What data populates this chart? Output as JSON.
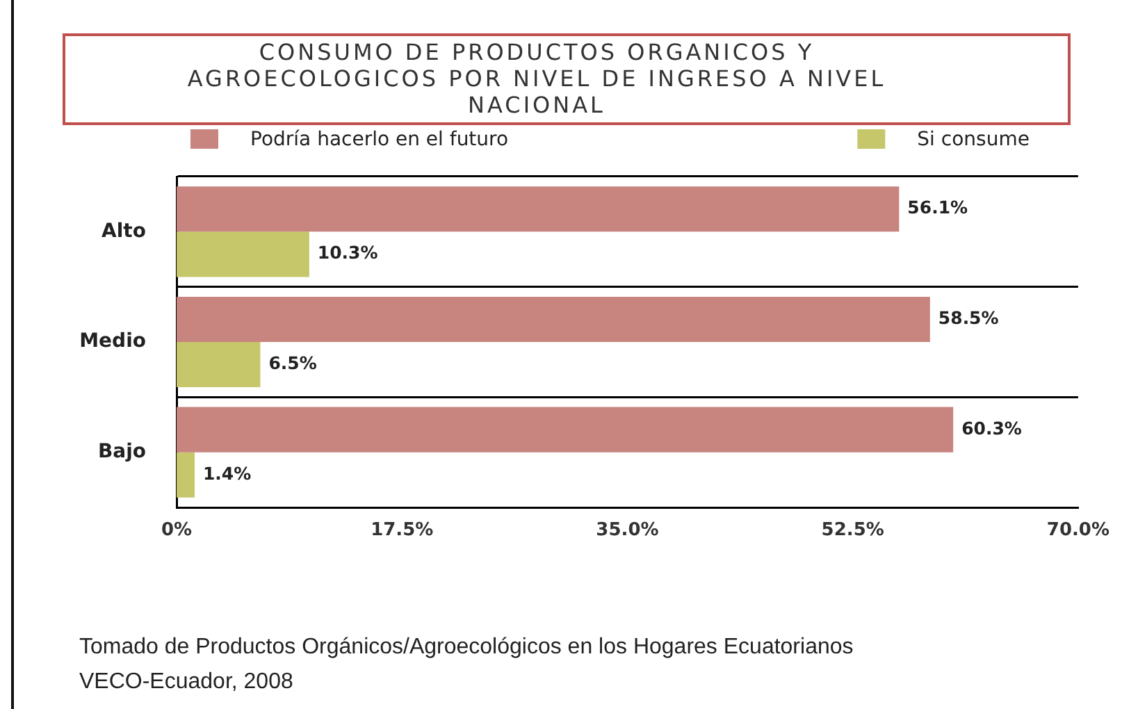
{
  "chart_data": {
    "type": "bar",
    "orientation": "horizontal",
    "title": "CONSUMO DE PRODUCTOS ORGANICOS Y AGROECOLOGICOS POR NIVEL DE INGRESO A NIVEL NACIONAL",
    "categories": [
      "Alto",
      "Medio",
      "Bajo"
    ],
    "series": [
      {
        "name": "Podría hacerlo en el futuro",
        "color": "#c8847f",
        "values": [
          56.1,
          58.5,
          60.3
        ],
        "value_labels": [
          "56.1%",
          "58.5%",
          "60.3%"
        ]
      },
      {
        "name": "Si consume",
        "color": "#c6c66b",
        "values": [
          10.3,
          6.5,
          1.4
        ],
        "value_labels": [
          "10.3%",
          "6.5%",
          "1.4%"
        ]
      }
    ],
    "xlim": [
      0,
      70
    ],
    "xticks": [
      {
        "value": 0,
        "label": "0%"
      },
      {
        "value": 17.5,
        "label": "17.5%"
      },
      {
        "value": 35,
        "label": "35.0%"
      },
      {
        "value": 52.5,
        "label": "52.5%"
      },
      {
        "value": 70,
        "label": "70.0%"
      }
    ],
    "grid": "y",
    "legend": "top",
    "annotations": [
      "Tomado de Productos Orgánicos/Agroecológicos en los Hogares Ecuatorianos",
      "VECO-Ecuador, 2008"
    ]
  }
}
